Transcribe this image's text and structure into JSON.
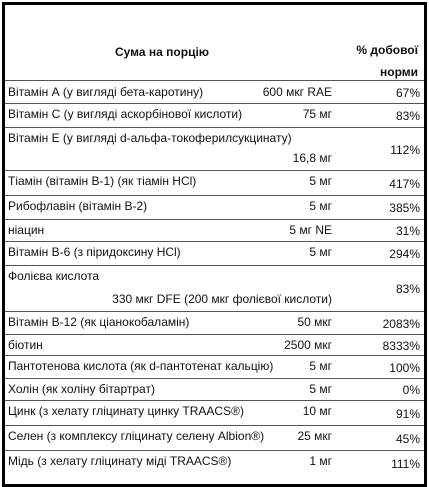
{
  "header": {
    "serving": "Сума на порцію",
    "daily_value": "% добової норми"
  },
  "rows": [
    {
      "name": "Вітамін А (у вигляді бета-каротину)",
      "amount": "600 мкг RAE",
      "daily_value": "67%"
    },
    {
      "name": "Вітамін С (у вигляді аскорбінової кислоти)",
      "amount": "75 мг",
      "daily_value": "83%"
    },
    {
      "name": "Вітамін Е (у вигляді d-альфа-токоферилсукцинату)",
      "amount": "16,8 мг",
      "daily_value": "112%"
    },
    {
      "name": "Тіамін (вітамін В-1) (як тіамін HCl)",
      "amount": "5 мг",
      "daily_value": "417%"
    },
    {
      "name": "Рибофлавін (вітамін В-2)",
      "amount": "5 мг",
      "daily_value": "385%"
    },
    {
      "name": "ніацин",
      "amount": "5 мг NE",
      "daily_value": "31%"
    },
    {
      "name": "Вітамін В-6 (з піридоксину HCl)",
      "amount": "5 мг",
      "daily_value": "294%"
    },
    {
      "name": "Фолієва кислота",
      "amount": "330 мкг DFE (200 мкг фолієвої кислоти)",
      "daily_value": "83%"
    },
    {
      "name": "Вітамін В-12 (як ціанокобаламін)",
      "amount": "50 мкг",
      "daily_value": "2083%"
    },
    {
      "name": "біотин",
      "amount": "2500 мкг",
      "daily_value": "8333%"
    },
    {
      "name": "Пантотенова кислота (як d-пантотенат кальцію)",
      "amount": "5 мг",
      "daily_value": "100%"
    },
    {
      "name": "Холін (як холіну бітартрат)",
      "amount": "5 мг",
      "daily_value": "0%"
    },
    {
      "name": "Цинк (з хелату гліцинату цинку TRAACS®)",
      "amount": "10 мг",
      "daily_value": "91%"
    },
    {
      "name": "Селен (з комплексу гліцинату селену Albion®)",
      "amount": "25 мкг",
      "daily_value": "45%"
    },
    {
      "name": "Мідь (з хелату гліцинату міді TRAACS®)",
      "amount": "1 мг",
      "daily_value": "111%"
    }
  ]
}
